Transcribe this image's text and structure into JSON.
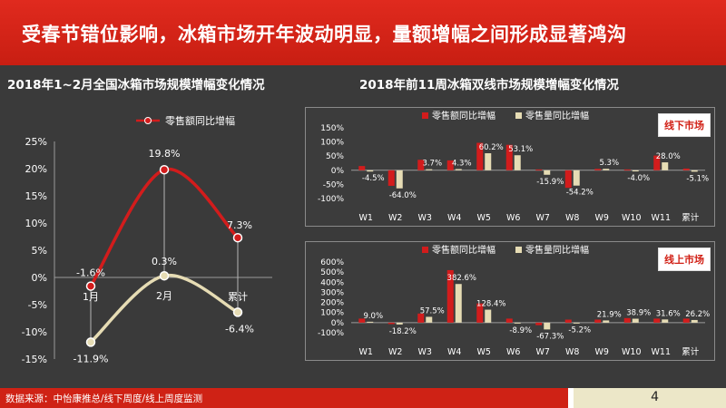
{
  "header": {
    "title": "受春节错位影响，冰箱市场开年波动明显，量额增幅之间形成显著鸿沟"
  },
  "colors": {
    "red": "#d21c1c",
    "cream": "#e6dcb4",
    "banner": "#d4241a"
  },
  "footer": {
    "source": "数据来源：中怡康推总/线下周度/线上周度监测",
    "page": "4"
  },
  "chart_data": [
    {
      "type": "line",
      "title": "2018年1~2月全国冰箱市场规模增幅变化情况",
      "categories": [
        "1月",
        "2月",
        "累计"
      ],
      "yticks": [
        "25%",
        "20%",
        "15%",
        "10%",
        "5%",
        "0%",
        "-5%",
        "-10%",
        "-15%"
      ],
      "ylim": [
        -15,
        25
      ],
      "legend": [
        "零售额同比增幅"
      ],
      "series": [
        {
          "name": "零售额同比增幅",
          "values": [
            -1.6,
            19.8,
            7.3
          ],
          "labels": [
            "-1.6%",
            "19.8%",
            "7.3%"
          ],
          "color": "#d21c1c"
        },
        {
          "name": "",
          "values": [
            -11.9,
            0.3,
            -6.4
          ],
          "labels": [
            "-11.9%",
            "0.3%",
            "-6.4%"
          ],
          "color": "#e6dcb4"
        }
      ]
    },
    {
      "type": "bar",
      "title": "2018年前11周冰箱双线市场规模增幅变化情况",
      "subtitle": "线下市场",
      "categories": [
        "W1",
        "W2",
        "W3",
        "W4",
        "W5",
        "W6",
        "W7",
        "W8",
        "W9",
        "W10",
        "W11",
        "累计"
      ],
      "yticks": [
        "150%",
        "100%",
        "50%",
        "0%",
        "-50%",
        "-100%"
      ],
      "ylim": [
        -100,
        150
      ],
      "legend": [
        "零售额同比增幅",
        "零售量同比增幅"
      ],
      "series": [
        {
          "name": "零售额同比增幅",
          "values": [
            15,
            -55,
            37,
            35,
            97,
            90,
            3,
            -62,
            5,
            3,
            52,
            6
          ],
          "labels": [
            "",
            "",
            "",
            "",
            "",
            "",
            "",
            "",
            "",
            "",
            "",
            ""
          ],
          "color": "#d21c1c"
        },
        {
          "name": "零售量同比增幅",
          "values": [
            -4.5,
            -64.0,
            3.7,
            4.3,
            60.2,
            53.1,
            -15.9,
            -54.2,
            5.3,
            -4.0,
            28.0,
            -5.1
          ],
          "labels": [
            "-4.5%",
            "-64.0%",
            "3.7%",
            "4.3%",
            "60.2%",
            "53.1%",
            "-15.9%",
            "-54.2%",
            "5.3%",
            "-4.0%",
            "28.0%",
            "-5.1%"
          ],
          "color": "#e6dcb4"
        }
      ]
    },
    {
      "type": "bar",
      "subtitle": "线上市场",
      "categories": [
        "W1",
        "W2",
        "W3",
        "W4",
        "W5",
        "W6",
        "W7",
        "W8",
        "W9",
        "W10",
        "W11",
        "累计"
      ],
      "yticks": [
        "600%",
        "500%",
        "400%",
        "300%",
        "200%",
        "100%",
        "0%",
        "-100%"
      ],
      "ylim": [
        -100,
        600
      ],
      "legend": [
        "零售额同比增幅",
        "零售量同比增幅"
      ],
      "series": [
        {
          "name": "零售额同比增幅",
          "values": [
            40,
            -14,
            90,
            520,
            190,
            40,
            -25,
            30,
            30,
            45,
            40,
            40
          ],
          "labels": [
            "",
            "",
            "",
            "",
            "",
            "",
            "",
            "",
            "",
            "",
            "",
            ""
          ],
          "color": "#d21c1c"
        },
        {
          "name": "零售量同比增幅",
          "values": [
            9.0,
            -18.2,
            57.5,
            382.6,
            128.4,
            -8.9,
            -67.3,
            -5.2,
            21.9,
            38.9,
            31.6,
            26.2
          ],
          "labels": [
            "9.0%",
            "-18.2%",
            "57.5%",
            "382.6%",
            "128.4%",
            "-8.9%",
            "-67.3%",
            "-5.2%",
            "21.9%",
            "38.9%",
            "31.6%",
            "26.2%"
          ],
          "color": "#e6dcb4"
        }
      ]
    }
  ]
}
